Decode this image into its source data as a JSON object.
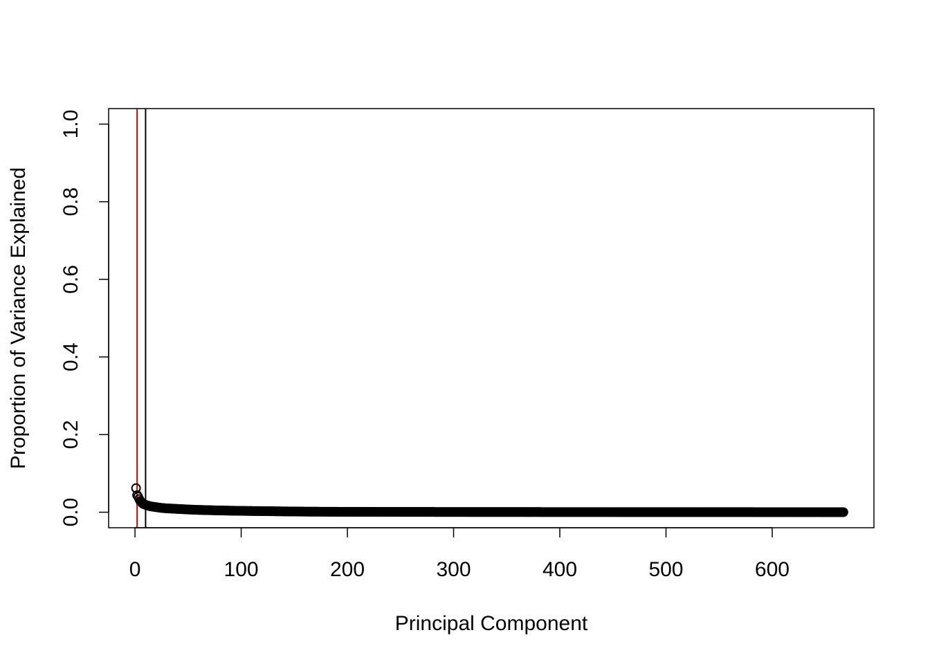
{
  "chart_data": {
    "type": "scatter",
    "title": "",
    "xlabel": "Principal Component",
    "ylabel": "Proportion of Variance Explained",
    "xlim": [
      -24.8,
      695.8
    ],
    "ylim": [
      -0.04,
      1.04
    ],
    "x_ticks": [
      0,
      100,
      200,
      300,
      400,
      500,
      600
    ],
    "x_tick_labels": [
      "0",
      "100",
      "200",
      "300",
      "400",
      "500",
      "600"
    ],
    "y_ticks": [
      0.0,
      0.2,
      0.4,
      0.6,
      0.8,
      1.0
    ],
    "y_tick_labels": [
      "0.0",
      "0.2",
      "0.4",
      "0.6",
      "0.8",
      "1.0"
    ],
    "grid": false,
    "legend": "none",
    "n_components": 667,
    "series": [
      {
        "marker": "open-circle",
        "color": "#000000",
        "points": [
          [
            1,
            0.062
          ],
          [
            2,
            0.044
          ],
          [
            3,
            0.04
          ],
          [
            4,
            0.034
          ],
          [
            5,
            0.029
          ],
          [
            6,
            0.026
          ],
          [
            7,
            0.023
          ],
          [
            8,
            0.021
          ],
          [
            9,
            0.02
          ],
          [
            10,
            0.019
          ],
          [
            12,
            0.017
          ],
          [
            15,
            0.015
          ],
          [
            20,
            0.013
          ],
          [
            25,
            0.011
          ],
          [
            30,
            0.01
          ],
          [
            40,
            0.0085
          ],
          [
            50,
            0.007
          ],
          [
            60,
            0.006
          ],
          [
            80,
            0.0045
          ],
          [
            100,
            0.0035
          ],
          [
            130,
            0.0025
          ],
          [
            160,
            0.0015
          ],
          [
            200,
            0.001
          ],
          [
            300,
            0.0006
          ],
          [
            400,
            0.0004
          ],
          [
            500,
            0.0003
          ],
          [
            600,
            0.0002
          ],
          [
            667,
            0.0001
          ]
        ]
      }
    ],
    "reference_lines": [
      {
        "x": 2,
        "color": "#e00000"
      },
      {
        "x": 10,
        "color": "#000000"
      }
    ]
  }
}
